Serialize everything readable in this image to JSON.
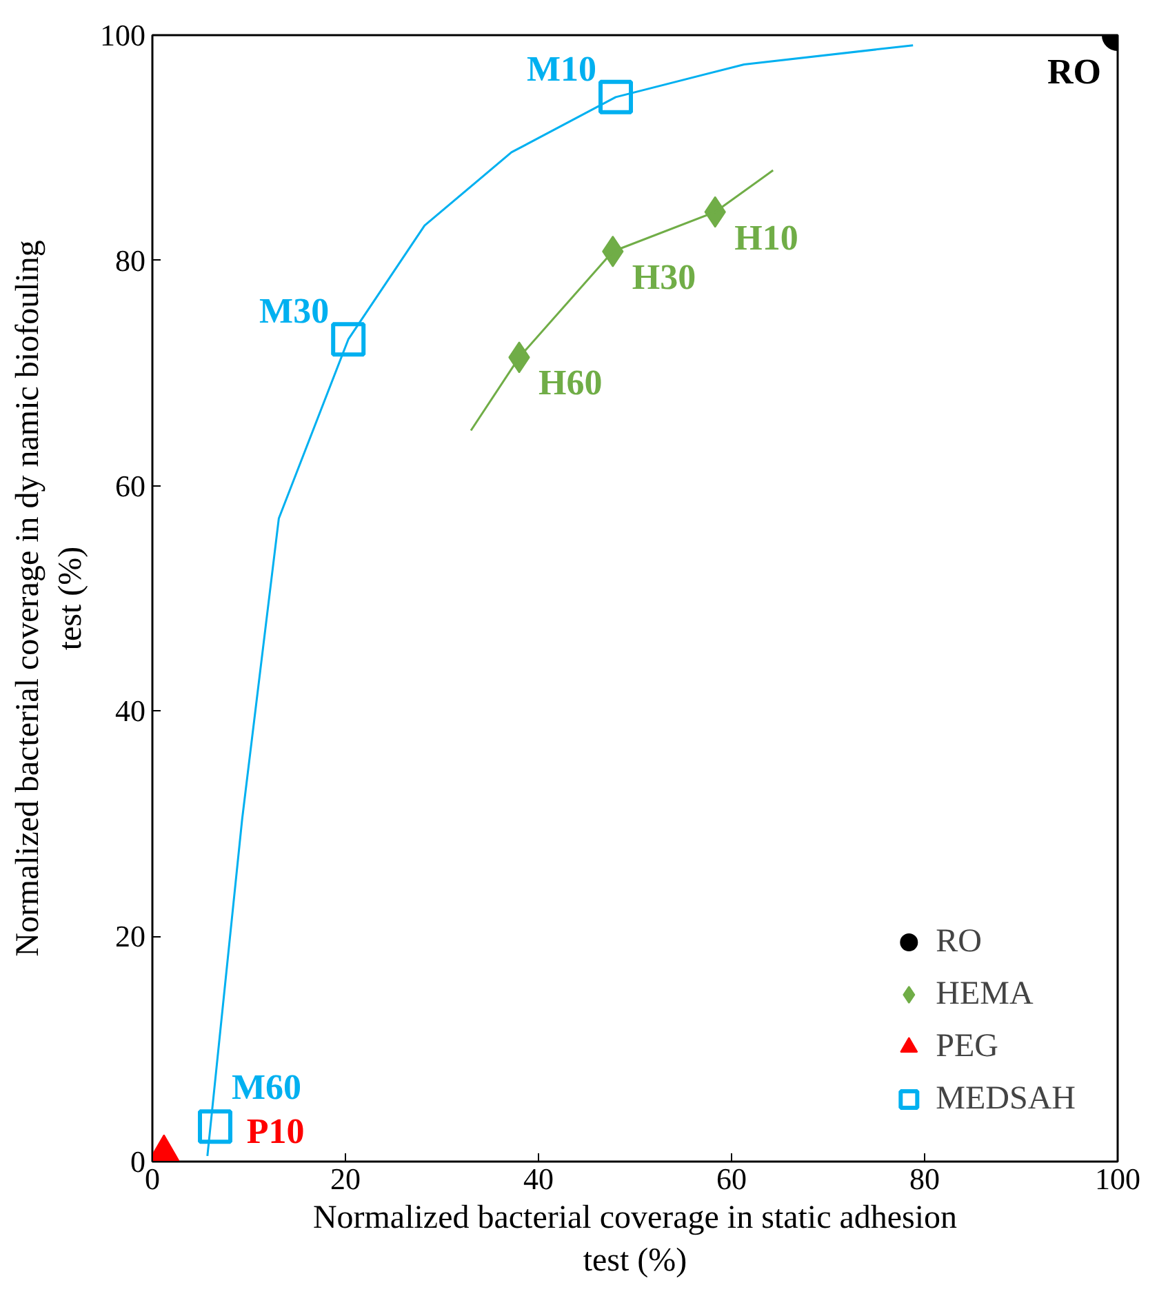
{
  "chart_data": {
    "type": "scatter",
    "xlabel": "Normalized bacterial coverage in static adhesion test (%)",
    "ylabel": "Normalized bacterial coverage in dy namic biofouling test (%)",
    "xlim": [
      0,
      100
    ],
    "ylim": [
      0,
      100
    ],
    "xticks": [
      0,
      20,
      40,
      60,
      80,
      100
    ],
    "yticks": [
      0,
      20,
      40,
      60,
      80,
      100
    ],
    "grid": false,
    "legend": "bottom right",
    "series": [
      {
        "name": "RO",
        "color": "#000000",
        "marker": "circle",
        "x": [
          100
        ],
        "values": [
          100
        ]
      },
      {
        "name": "HEMA",
        "color": "#70ad47",
        "marker": "diamond",
        "x": [
          58.3,
          47.7,
          38.0
        ],
        "values": [
          84.3,
          80.8,
          71.4
        ]
      },
      {
        "name": "PEG",
        "color": "#ff0000",
        "marker": "triangle",
        "x": [
          1.2
        ],
        "values": [
          0.8
        ]
      },
      {
        "name": "MEDSAH",
        "color": "#00b0f0",
        "marker": "square",
        "x": [
          48.0,
          20.3,
          6.5
        ],
        "values": [
          94.5,
          73.0,
          3.1
        ]
      },
      {
        "type": "line",
        "color": "#00b0f0",
        "x": [
          5.7,
          9.3,
          13.1,
          20.3,
          28.2,
          37.2,
          48.0,
          61.3,
          78.8
        ],
        "values": [
          0.5,
          30.4,
          57.1,
          73.0,
          83.1,
          89.6,
          94.5,
          97.4,
          99.1
        ]
      },
      {
        "type": "line",
        "color": "#70ad47",
        "x": [
          64.3,
          58.3,
          47.7,
          38.0,
          33.0
        ],
        "values": [
          88.0,
          84.3,
          80.8,
          71.4,
          64.9
        ]
      }
    ],
    "annotations": [
      {
        "text": "RO",
        "x": 100,
        "y": 100
      },
      {
        "text": "M10",
        "x": 48.0,
        "y": 94.5
      },
      {
        "text": "M30",
        "x": 20.3,
        "y": 73.0
      },
      {
        "text": "M60",
        "x": 6.5,
        "y": 3.1
      },
      {
        "text": "H10",
        "x": 58.3,
        "y": 84.3
      },
      {
        "text": "H30",
        "x": 47.7,
        "y": 80.8
      },
      {
        "text": "H60",
        "x": 38.0,
        "y": 71.4
      },
      {
        "text": "P10",
        "x": 1.2,
        "y": 0.8
      }
    ]
  }
}
